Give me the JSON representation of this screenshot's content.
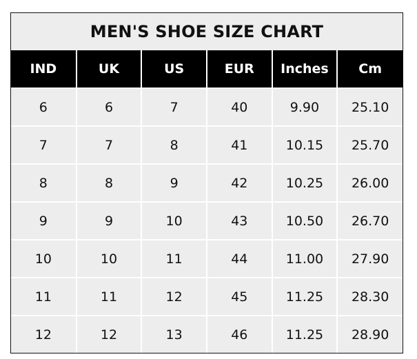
{
  "title": "MEN'S SHOE SIZE CHART",
  "colors": {
    "header_bg": "#000000",
    "cell_bg": "#ededed",
    "grid": "#ffffff"
  },
  "columns": [
    "IND",
    "UK",
    "US",
    "EUR",
    "Inches",
    "Cm"
  ],
  "rows": [
    [
      "6",
      "6",
      "7",
      "40",
      "9.90",
      "25.10"
    ],
    [
      "7",
      "7",
      "8",
      "41",
      "10.15",
      "25.70"
    ],
    [
      "8",
      "8",
      "9",
      "42",
      "10.25",
      "26.00"
    ],
    [
      "9",
      "9",
      "10",
      "43",
      "10.50",
      "26.70"
    ],
    [
      "10",
      "10",
      "11",
      "44",
      "11.00",
      "27.90"
    ],
    [
      "11",
      "11",
      "12",
      "45",
      "11.25",
      "28.30"
    ],
    [
      "12",
      "12",
      "13",
      "46",
      "11.25",
      "28.90"
    ]
  ]
}
